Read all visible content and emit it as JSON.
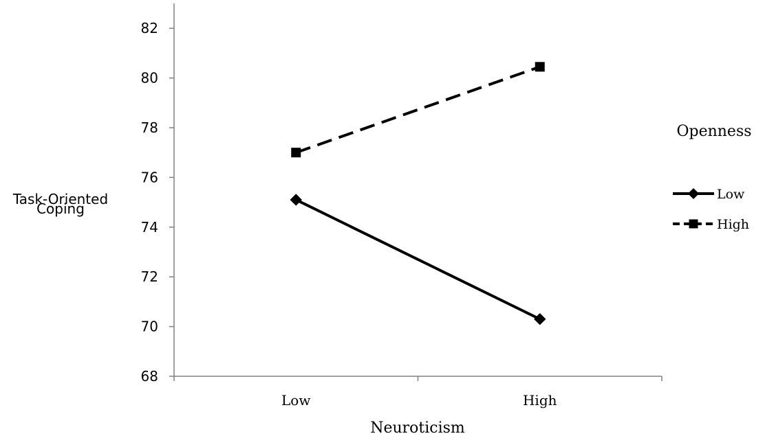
{
  "chart_data": {
    "type": "line",
    "xlabel": "Neuroticism",
    "ylabel_lines": [
      "Task-Oriented",
      "Coping"
    ],
    "categories": [
      "Low",
      "High"
    ],
    "ylim": [
      68,
      83
    ],
    "yticks": [
      "68",
      "70",
      "72",
      "74",
      "76",
      "78",
      "80",
      "82"
    ],
    "grid": false,
    "legend": {
      "title": "Openness",
      "position": "right"
    },
    "series": [
      {
        "name": "Low",
        "values": [
          75.1,
          70.3
        ],
        "marker": "diamond",
        "line_style": "solid",
        "color": "#000000"
      },
      {
        "name": "High",
        "values": [
          77.0,
          80.45
        ],
        "marker": "square",
        "line_style": "dashed",
        "color": "#000000"
      }
    ]
  }
}
